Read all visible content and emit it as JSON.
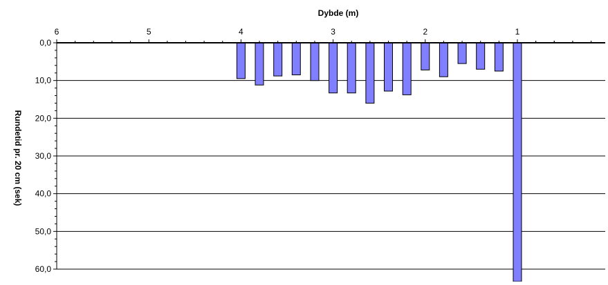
{
  "chart_data": {
    "type": "bar",
    "title": "",
    "xlabel": "Dybde  (m)",
    "ylabel": "Rundetid pr. 20 cm (sek)",
    "x_axis_position": "top",
    "x_reversed": true,
    "y_reversed": true,
    "xlim": [
      0.0,
      6.0
    ],
    "ylim": [
      0,
      60
    ],
    "x_ticks": [
      {
        "value": 6,
        "label": "6"
      },
      {
        "value": 5,
        "label": "5"
      },
      {
        "value": 4,
        "label": "4"
      },
      {
        "value": 3,
        "label": "3"
      },
      {
        "value": 2,
        "label": "2"
      },
      {
        "value": 1,
        "label": "1"
      }
    ],
    "y_ticks": [
      {
        "value": 0,
        "label": "0,0"
      },
      {
        "value": 10,
        "label": "10,0"
      },
      {
        "value": 20,
        "label": "20,0"
      },
      {
        "value": 30,
        "label": "30,0"
      },
      {
        "value": 40,
        "label": "40,0"
      },
      {
        "value": 50,
        "label": "50,0"
      },
      {
        "value": 60,
        "label": "60,0"
      }
    ],
    "grid": "horizontal",
    "legend": "none",
    "bar_color": "#7f7fff",
    "series": [
      {
        "x": [
          4.0,
          3.8,
          3.6,
          3.4,
          3.2,
          3.0,
          2.8,
          2.6,
          2.4,
          2.2,
          2.0,
          1.8,
          1.6,
          1.4,
          1.2,
          1.0
        ],
        "values": [
          9.5,
          11.2,
          8.8,
          8.5,
          10.0,
          13.3,
          13.3,
          16.0,
          12.8,
          13.8,
          7.2,
          9.0,
          5.5,
          7.0,
          7.5,
          65.0
        ]
      }
    ]
  }
}
